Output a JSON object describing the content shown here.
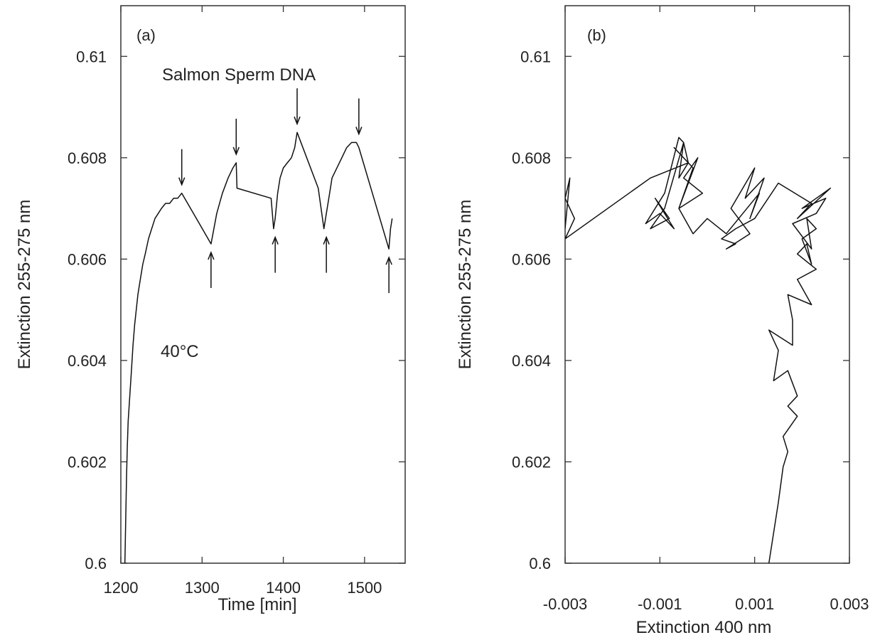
{
  "chart_data": [
    {
      "type": "line",
      "panel_label": "(a)",
      "xlabel": "Time [min]",
      "ylabel": "Extinction 255-275 nm",
      "xlim": [
        1200,
        1550
      ],
      "ylim": [
        0.6,
        0.611
      ],
      "x_ticks": [
        1200,
        1300,
        1400,
        1500
      ],
      "x_tick_labels": [
        "1200",
        "1300",
        "1400",
        "1500"
      ],
      "y_ticks": [
        0.6,
        0.602,
        0.604,
        0.606,
        0.608,
        0.61
      ],
      "y_tick_labels": [
        "0.6",
        "0.602",
        "0.604",
        "0.606",
        "0.608",
        "0.61"
      ],
      "grid": false,
      "annotations": [
        {
          "text": "Salmon Sperm DNA",
          "x": 1340,
          "y": 0.6094
        },
        {
          "text": "40°C",
          "x": 1225,
          "y": 0.6042
        }
      ],
      "down_arrows_at_x": [
        1275,
        1342,
        1417,
        1493
      ],
      "up_arrows_at_x": [
        1311,
        1390,
        1453,
        1530
      ],
      "series": [
        {
          "x": [
            1205,
            1207,
            1208,
            1209,
            1211,
            1213,
            1215,
            1217,
            1219,
            1221,
            1224,
            1227,
            1230,
            1234,
            1238,
            1242,
            1246,
            1250,
            1255,
            1260,
            1265,
            1270,
            1275,
            1293,
            1311,
            1318,
            1325,
            1332,
            1338,
            1342,
            1343,
            1385,
            1388,
            1390,
            1393,
            1396,
            1400,
            1405,
            1410,
            1414,
            1417,
            1443,
            1450,
            1453,
            1456,
            1460,
            1466,
            1472,
            1478,
            1484,
            1490,
            1493,
            1530,
            1532,
            1534
          ],
          "y": [
            0.6,
            0.6017,
            0.6023,
            0.6028,
            0.6033,
            0.6038,
            0.6043,
            0.6047,
            0.605,
            0.6053,
            0.6056,
            0.6059,
            0.6061,
            0.6064,
            0.6066,
            0.6068,
            0.6069,
            0.607,
            0.6071,
            0.6071,
            0.6072,
            0.6072,
            0.6073,
            0.6068,
            0.6063,
            0.6069,
            0.6073,
            0.6076,
            0.6078,
            0.6079,
            0.6074,
            0.6072,
            0.6066,
            0.6068,
            0.6073,
            0.6076,
            0.6078,
            0.6079,
            0.608,
            0.6082,
            0.6085,
            0.6074,
            0.6066,
            0.6069,
            0.6072,
            0.6076,
            0.6078,
            0.608,
            0.6082,
            0.6083,
            0.6083,
            0.6082,
            0.6062,
            0.6066,
            0.6068
          ]
        }
      ]
    },
    {
      "type": "line",
      "panel_label": "(b)",
      "xlabel": "Extinction 400 nm",
      "ylabel": "Extinction 255-275 nm",
      "xlim": [
        -0.003,
        0.003
      ],
      "ylim": [
        0.6,
        0.611
      ],
      "x_ticks": [
        -0.003,
        -0.001,
        0.001,
        0.003
      ],
      "x_tick_labels": [
        "-0.003",
        "-0.001",
        "0.001",
        "0.003"
      ],
      "y_ticks": [
        0.6,
        0.602,
        0.604,
        0.606,
        0.608,
        0.61
      ],
      "y_tick_labels": [
        "0.6",
        "0.602",
        "0.604",
        "0.606",
        "0.608",
        "0.61"
      ],
      "grid": false,
      "series": [
        {
          "x": [
            0.0013,
            0.0015,
            0.0016,
            0.0017,
            0.0016,
            0.0019,
            0.0017,
            0.0019,
            0.0017,
            0.0014,
            0.0015,
            0.0013,
            0.0018,
            0.0018,
            0.0017,
            0.0022,
            0.0019,
            0.0023,
            0.0019,
            0.0021,
            0.0022,
            0.002,
            0.0023,
            0.0021,
            0.0022,
            0.0018,
            0.0023,
            0.0025,
            0.002,
            0.0026,
            0.0019,
            0.0022,
            0.0015,
            0.001,
            0.0006,
            0.0003,
            0.0006,
            0.0004,
            0.0009,
            0.0005,
            0.001,
            0.0008,
            0.0012,
            0.0009,
            0.0011,
            0.0004,
            0.0,
            -0.0003,
            -0.0006,
            -0.0002,
            -0.0005,
            -0.0001,
            -0.0006,
            -0.0003,
            -0.0007,
            -0.0004,
            -0.0006,
            -0.0005,
            -0.0009,
            -0.0012,
            -0.0008,
            -0.0011,
            -0.0007,
            -0.001,
            -0.0013,
            -0.0009,
            -0.0006,
            -0.0005,
            -0.0004,
            -0.0012,
            -0.003,
            -0.0028,
            -0.003,
            -0.0029,
            -0.003
          ],
          "y": [
            0.6,
            0.6012,
            0.6019,
            0.6022,
            0.6025,
            0.6029,
            0.6031,
            0.6033,
            0.6038,
            0.6036,
            0.6042,
            0.6046,
            0.6043,
            0.6048,
            0.6053,
            0.6051,
            0.6056,
            0.6058,
            0.6061,
            0.6063,
            0.6059,
            0.6064,
            0.6066,
            0.6068,
            0.6062,
            0.6067,
            0.6069,
            0.6072,
            0.607,
            0.6074,
            0.6068,
            0.6071,
            0.6075,
            0.6068,
            0.6066,
            0.6064,
            0.6063,
            0.6062,
            0.6065,
            0.607,
            0.6078,
            0.6072,
            0.6076,
            0.6068,
            0.6073,
            0.6065,
            0.6068,
            0.6065,
            0.607,
            0.608,
            0.6076,
            0.6073,
            0.607,
            0.6078,
            0.6082,
            0.6079,
            0.6076,
            0.6083,
            0.607,
            0.6066,
            0.6068,
            0.6072,
            0.6066,
            0.6069,
            0.6067,
            0.6073,
            0.6084,
            0.6083,
            0.6079,
            0.6076,
            0.6064,
            0.6068,
            0.6072,
            0.6076,
            0.6066
          ]
        }
      ]
    }
  ]
}
